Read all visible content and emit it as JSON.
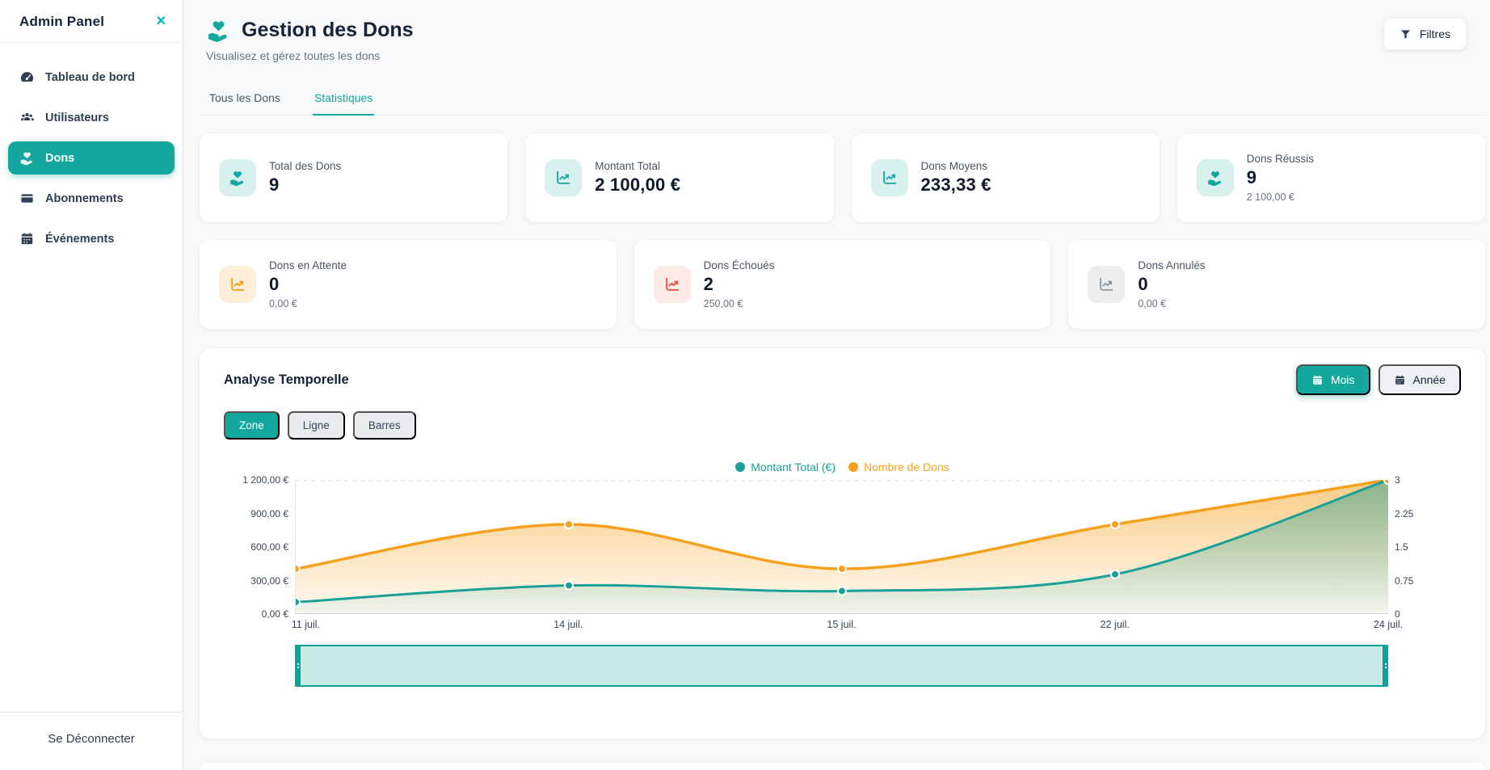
{
  "colors": {
    "accent": "#13a79e",
    "teal_series": "#1aa096",
    "orange_series": "#f5a11d",
    "red": "#ee4b3c",
    "gray_icon": "#8e959e"
  },
  "sidebar": {
    "title": "Admin Panel",
    "close_icon": "✕",
    "items": [
      {
        "label": "Tableau de bord",
        "icon": "dashboard-gauge-icon",
        "active": false
      },
      {
        "label": "Utilisateurs",
        "icon": "users-icon",
        "active": false
      },
      {
        "label": "Dons",
        "icon": "hand-heart-icon",
        "active": true
      },
      {
        "label": "Abonnements",
        "icon": "credit-card-icon",
        "active": false
      },
      {
        "label": "Événements",
        "icon": "calendar-icon",
        "active": false
      }
    ],
    "logout_label": "Se Déconnecter"
  },
  "header": {
    "title": "Gestion des Dons",
    "title_icon": "hand-heart-icon",
    "subtitle": "Visualisez et gérez toutes les dons",
    "filters_label": "Filtres",
    "filters_icon": "funnel-icon"
  },
  "tabs": [
    {
      "label": "Tous les Dons",
      "active": false
    },
    {
      "label": "Statistiques",
      "active": true
    }
  ],
  "stats_row1": [
    {
      "label": "Total des Dons",
      "value": "9",
      "icon": "hand-heart-icon",
      "color": "teal"
    },
    {
      "label": "Montant Total",
      "value": "2 100,00 €",
      "icon": "chart-line-icon",
      "color": "teal"
    },
    {
      "label": "Dons Moyens",
      "value": "233,33 €",
      "icon": "chart-line-icon",
      "color": "teal"
    },
    {
      "label": "Dons Réussis",
      "value": "9",
      "subvalue": "2 100,00 €",
      "icon": "hand-heart-icon",
      "color": "teal"
    }
  ],
  "stats_row2": [
    {
      "label": "Dons en Attente",
      "value": "0",
      "subvalue": "0,00 €",
      "icon": "chart-line-icon",
      "color": "orange"
    },
    {
      "label": "Dons Échoués",
      "value": "2",
      "subvalue": "250,00 €",
      "icon": "chart-line-icon",
      "color": "red"
    },
    {
      "label": "Dons Annulés",
      "value": "0",
      "subvalue": "0,00 €",
      "icon": "chart-line-icon",
      "color": "gray"
    }
  ],
  "analysis": {
    "title": "Analyse Temporelle",
    "period_buttons": [
      {
        "label": "Mois",
        "icon": "calendar-icon",
        "active": true
      },
      {
        "label": "Année",
        "icon": "calendar-icon",
        "active": false
      }
    ],
    "type_buttons": [
      {
        "label": "Zone",
        "active": true
      },
      {
        "label": "Ligne",
        "active": false
      },
      {
        "label": "Barres",
        "active": false
      }
    ]
  },
  "chart_data": {
    "type": "area",
    "x": [
      "11 juil.",
      "14 juil.",
      "15 juil.",
      "22 juil.",
      "24 juil."
    ],
    "series": [
      {
        "name": "Montant Total (€)",
        "axis": "left",
        "color": "#1aa096",
        "values": [
          100,
          250,
          200,
          350,
          1200
        ]
      },
      {
        "name": "Nombre de Dons",
        "axis": "right",
        "color": "#f5a11d",
        "values": [
          1,
          2,
          1,
          2,
          3
        ]
      }
    ],
    "left_axis": {
      "ticks": [
        "1 200,00 €",
        "900,00 €",
        "600,00 €",
        "300,00 €",
        "0,00 €"
      ],
      "min": 0,
      "max": 1200
    },
    "right_axis": {
      "ticks": [
        "3",
        "2.25",
        "1.5",
        "0.75",
        "0"
      ],
      "min": 0,
      "max": 3
    },
    "legend_position": "top-center",
    "grid": "top-dashed-only",
    "brush": {
      "selected_range": "full"
    }
  }
}
